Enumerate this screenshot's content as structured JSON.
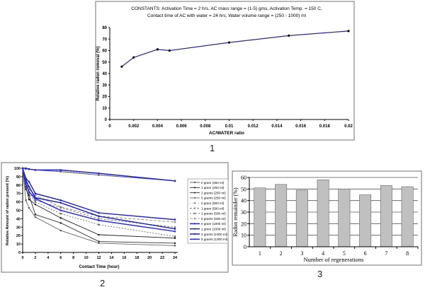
{
  "panel_labels": [
    "1",
    "2",
    "3"
  ],
  "chart_data": [
    {
      "type": "line",
      "title_lines": [
        "CONSTANTS: Activation Time = 2 hrs,    AC mass range = (1-5) gms, Activation Temp. = 150 C,",
        "Contact time of    AC with water = 24 hrs, Water volume range = (250 - 1000) ml"
      ],
      "xlabel": "AC/WATER ratio",
      "ylabel": "Relative radon removal (%)",
      "xlim": [
        0,
        0.02
      ],
      "ylim": [
        0,
        80
      ],
      "xticks": [
        "0",
        "0.002",
        "0.004",
        "0.006",
        "0.008",
        "0.01",
        "0.012",
        "0.014",
        "0.016",
        "0.018",
        "0.02"
      ],
      "yticks": [
        "0",
        "10",
        "20",
        "30",
        "40",
        "50",
        "60",
        "70",
        "80"
      ],
      "x": [
        0.001,
        0.002,
        0.004,
        0.005,
        0.01,
        0.015,
        0.02
      ],
      "values": [
        46,
        54,
        61,
        60,
        67,
        73,
        77
      ],
      "color": "#2b2b8a",
      "grid": false
    },
    {
      "type": "line",
      "xlabel": "Contact Time (hour)",
      "ylabel": "Relative Amount of radon present (%)",
      "xlim": [
        0,
        24
      ],
      "ylim": [
        0,
        100
      ],
      "xticks": [
        "0",
        "2",
        "4",
        "6",
        "8",
        "10",
        "12",
        "14",
        "16",
        "18",
        "20",
        "22",
        "24"
      ],
      "yticks": [
        "0",
        "10",
        "20",
        "30",
        "40",
        "50",
        "60",
        "70",
        "80",
        "90",
        "100"
      ],
      "legend_position": "right",
      "x": [
        0,
        0.5,
        1,
        2,
        6,
        12,
        24
      ],
      "series": [
        {
          "name": "0 gram  (250 ml)",
          "values": [
            100,
            100,
            99,
            98,
            96,
            92,
            85
          ],
          "color": "#555555",
          "dash": ""
        },
        {
          "name": "1 gram  (250 ml)",
          "values": [
            100,
            78,
            63,
            57,
            41,
            21,
            17
          ],
          "color": "#222222",
          "dash": ""
        },
        {
          "name": "2 grams  (250 ml)",
          "values": [
            100,
            75,
            68,
            45,
            35,
            13,
            11
          ],
          "color": "#333333",
          "dash": ""
        },
        {
          "name": "5 grams  (250 ml)",
          "values": [
            100,
            62,
            53,
            42,
            26,
            11,
            8
          ],
          "color": "#666666",
          "dash": ""
        },
        {
          "name": "0 gram  (500 ml)",
          "values": [
            100,
            99,
            99,
            98,
            97,
            93,
            85
          ],
          "color": "#777777",
          "dash": "1,3"
        },
        {
          "name": "1 gram  (500 ml)",
          "values": [
            100,
            83,
            72,
            62,
            53,
            40,
            30
          ],
          "color": "#777777",
          "dash": "3,2"
        },
        {
          "name": "2 grams  (500 ml)",
          "values": [
            100,
            80,
            70,
            60,
            46,
            33,
            19
          ],
          "color": "#666666",
          "dash": "2,2"
        },
        {
          "name": "5 grams  (500 ml)",
          "values": [
            100,
            85,
            75,
            68,
            54,
            43,
            36
          ],
          "color": "#888888",
          "dash": "4,2"
        },
        {
          "name": "0 gram  (1000 ml)",
          "values": [
            100,
            100,
            99,
            98,
            98,
            94,
            85
          ],
          "color": "#2525c8",
          "dash": ""
        },
        {
          "name": "1 gram  (1000 ml)",
          "values": [
            100,
            88,
            84,
            70,
            62,
            47,
            39
          ],
          "color": "#2525c8",
          "dash": ""
        },
        {
          "name": "2 grams  (1000 ml)",
          "values": [
            100,
            86,
            78,
            65,
            59,
            43,
            28
          ],
          "color": "#2020b0",
          "dash": ""
        },
        {
          "name": "5 grams  (1000 ml)",
          "values": [
            100,
            82,
            72,
            64,
            50,
            38,
            25
          ],
          "color": "#3030d8",
          "dash": ""
        }
      ],
      "grid": false
    },
    {
      "type": "bar",
      "xlabel": "Number of regenerations",
      "ylabel": "Radon remainder (%)",
      "ylim": [
        0,
        60
      ],
      "yticks": [
        "0",
        "10",
        "20",
        "30",
        "40",
        "50",
        "60"
      ],
      "categories": [
        "1",
        "2",
        "3",
        "4",
        "5",
        "6",
        "7",
        "8"
      ],
      "values": [
        51,
        54,
        49,
        58,
        50,
        45,
        53,
        52
      ],
      "bar_color": "#c0c0c0",
      "grid": true
    }
  ]
}
